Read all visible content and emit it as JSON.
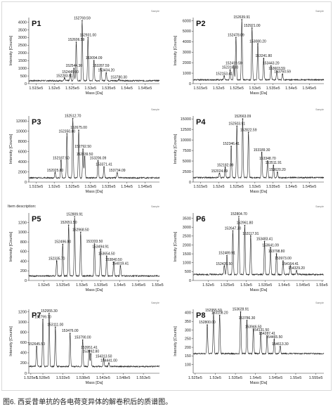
{
  "caption": "图6. 西妥昔单抗的各电荷变异体的解卷积后的质谱图。",
  "chart_data": [
    {
      "type": "line",
      "title": "P1",
      "xlabel": "Mass [Da]",
      "ylabel": "Intensity [Counts]",
      "corner_label": "Sample",
      "description": "",
      "xlim": [
        151300,
        154900
      ],
      "ylim": [
        0,
        4300
      ],
      "xticks": [
        151500,
        152000,
        152500,
        153000,
        153500,
        154000,
        154500
      ],
      "xtick_labels": [
        "1.515e5",
        "1.52e5",
        "1.525e5",
        "1.53e5",
        "1.535e5",
        "1.54e5",
        "1.545e5"
      ],
      "yticks": [
        0,
        500,
        1000,
        1500,
        2000,
        2500,
        3000,
        3500,
        4000
      ],
      "ytick_labels": [
        "0",
        "500",
        "1000",
        "1500",
        "2000",
        "2500",
        "3000",
        "3500",
        "4000"
      ],
      "baseline": 150,
      "peaks": [
        {
          "x": 152283.91,
          "y": 350,
          "label": "152283.91"
        },
        {
          "x": 152445.0,
          "y": 600,
          "label": "152445.00"
        },
        {
          "x": 152544.3,
          "y": 1000,
          "label": "152544.30"
        },
        {
          "x": 152606.59,
          "y": 2700,
          "label": "152606.59"
        },
        {
          "x": 152769.59,
          "y": 4100,
          "label": "152769.59"
        },
        {
          "x": 152931.0,
          "y": 3000,
          "label": "152931.00"
        },
        {
          "x": 153094.09,
          "y": 1500,
          "label": "153094.09"
        },
        {
          "x": 153287.59,
          "y": 1000,
          "label": "153287.59"
        },
        {
          "x": 153434.2,
          "y": 700,
          "label": "153434.20"
        },
        {
          "x": 153780.3,
          "y": 250,
          "label": "153780.30"
        }
      ]
    },
    {
      "type": "line",
      "title": "P2",
      "xlabel": "Mass [Da]",
      "ylabel": "Intensity [Counts]",
      "corner_label": "Sample",
      "description": "",
      "xlim": [
        151300,
        154900
      ],
      "ylim": [
        0,
        6300
      ],
      "xticks": [
        151500,
        152000,
        152500,
        153000,
        153500,
        154000,
        154500
      ],
      "xtick_labels": [
        "1.515e5",
        "1.52e5",
        "1.525e5",
        "1.53e5",
        "1.535e5",
        "1.54e5",
        "1.545e5"
      ],
      "yticks": [
        0,
        1000,
        2000,
        3000,
        4000,
        5000,
        6000
      ],
      "ytick_labels": [
        "0",
        "1000",
        "2000",
        "3000",
        "4000",
        "5000",
        "6000"
      ],
      "baseline": 300,
      "peaks": [
        {
          "x": 152153.41,
          "y": 700,
          "label": "152153.41"
        },
        {
          "x": 152316.3,
          "y": 1300,
          "label": "152316.30"
        },
        {
          "x": 152419.59,
          "y": 1700,
          "label": "152419.59"
        },
        {
          "x": 152478.09,
          "y": 4400,
          "label": "152478.09"
        },
        {
          "x": 152639.91,
          "y": 6100,
          "label": "152639.91"
        },
        {
          "x": 152921.0,
          "y": 5300,
          "label": "152921.00"
        },
        {
          "x": 153080.2,
          "y": 3800,
          "label": "153080.20"
        },
        {
          "x": 153241.8,
          "y": 2400,
          "label": "153241.80"
        },
        {
          "x": 153443.2,
          "y": 1700,
          "label": "153443.20"
        },
        {
          "x": 153603.59,
          "y": 1200,
          "label": "153603.59"
        },
        {
          "x": 153760.59,
          "y": 900,
          "label": "153760.59"
        }
      ]
    },
    {
      "type": "line",
      "title": "P3",
      "xlabel": "Mass [Da]",
      "ylabel": "Intensity [Counts]",
      "corner_label": "Sample",
      "description": "",
      "xlim": [
        151300,
        154900
      ],
      "ylim": [
        0,
        13000
      ],
      "xticks": [
        151500,
        152000,
        152500,
        153000,
        153500,
        154000,
        154500
      ],
      "xtick_labels": [
        "1.515e5",
        "1.52e5",
        "1.525e5",
        "1.53e5",
        "1.535e5",
        "1.54e5",
        "1.545e5"
      ],
      "yticks": [
        0,
        2000,
        4000,
        6000,
        8000,
        10000,
        12000
      ],
      "ytick_labels": [
        "0",
        "2000",
        "4000",
        "6000",
        "8000",
        "10000",
        "12000"
      ],
      "baseline": 700,
      "peaks": [
        {
          "x": 152025.8,
          "y": 1800,
          "label": "152025.80"
        },
        {
          "x": 152187.5,
          "y": 4200,
          "label": "152187.50"
        },
        {
          "x": 152350.8,
          "y": 9500,
          "label": "152350.80"
        },
        {
          "x": 152512.7,
          "y": 12500,
          "label": "152512.70"
        },
        {
          "x": 152675.0,
          "y": 10200,
          "label": "152675.00"
        },
        {
          "x": 152792.5,
          "y": 6500,
          "label": "152792.50"
        },
        {
          "x": 152839.5,
          "y": 5000,
          "label": "152839.50"
        },
        {
          "x": 153206.09,
          "y": 4200,
          "label": "153206.09"
        },
        {
          "x": 153371.41,
          "y": 3000,
          "label": "153371.41"
        },
        {
          "x": 153734.09,
          "y": 1800,
          "label": "153734.09"
        }
      ]
    },
    {
      "type": "line",
      "title": "P4",
      "xlabel": "Mass [Da]",
      "ylabel": "Intensity [Counts]",
      "corner_label": "Sample",
      "description": "",
      "xlim": [
        151300,
        154900
      ],
      "ylim": [
        0,
        15700
      ],
      "xticks": [
        151500,
        152000,
        152500,
        153000,
        153500,
        154000,
        154500
      ],
      "xtick_labels": [
        "1.515e5",
        "1.52e5",
        "1.525e5",
        "1.53e5",
        "1.535e5",
        "1.54e5",
        "1.545e5"
      ],
      "yticks": [
        0,
        2500,
        5000,
        7500,
        10000,
        12500,
        15000
      ],
      "ytick_labels": [
        "0",
        "2500",
        "5000",
        "7500",
        "10000",
        "12500",
        "15000"
      ],
      "baseline": 900,
      "peaks": [
        {
          "x": 152024.09,
          "y": 2000,
          "label": "152024.09"
        },
        {
          "x": 152182.09,
          "y": 3400,
          "label": "152182.09"
        },
        {
          "x": 152346.41,
          "y": 8500,
          "label": "152346.41"
        },
        {
          "x": 152503.91,
          "y": 13300,
          "label": "152503.91"
        },
        {
          "x": 152663.09,
          "y": 15000,
          "label": "152663.09"
        },
        {
          "x": 152822.59,
          "y": 11800,
          "label": "152822.59"
        },
        {
          "x": 153189.3,
          "y": 7000,
          "label": "153189.30"
        },
        {
          "x": 153348.7,
          "y": 5000,
          "label": "153348.70"
        },
        {
          "x": 153511.91,
          "y": 4000,
          "label": "153511.91"
        },
        {
          "x": 153620.2,
          "y": 2300,
          "label": "153620.20"
        }
      ]
    },
    {
      "type": "line",
      "title": "P5",
      "xlabel": "Mass [Da]",
      "ylabel": "Intensity [Counts]",
      "corner_label": "Sample",
      "description": "Item description:",
      "xlim": [
        151600,
        155050
      ],
      "ylim": [
        0,
        1400
      ],
      "xticks": [
        152000,
        152500,
        153000,
        153500,
        154000,
        154500,
        155000
      ],
      "xtick_labels": [
        "1.52e5",
        "1.525e5",
        "1.53e5",
        "1.535e5",
        "1.54e5",
        "1.545e5",
        "1.55e5"
      ],
      "yticks": [
        0,
        200,
        400,
        600,
        800,
        1000,
        1200
      ],
      "ytick_labels": [
        "0",
        "200",
        "400",
        "600",
        "800",
        "1000",
        "1200"
      ],
      "baseline": 80,
      "peaks": [
        {
          "x": 152335.7,
          "y": 400,
          "label": "152335.70"
        },
        {
          "x": 152496.0,
          "y": 750,
          "label": "152496.00"
        },
        {
          "x": 152651.5,
          "y": 1150,
          "label": "152651.50"
        },
        {
          "x": 152809.91,
          "y": 1320,
          "label": "152809.91"
        },
        {
          "x": 152968.5,
          "y": 1000,
          "label": "152968.50"
        },
        {
          "x": 153333.5,
          "y": 760,
          "label": "153333.50"
        },
        {
          "x": 153494.91,
          "y": 650,
          "label": "153494.91"
        },
        {
          "x": 153654.5,
          "y": 500,
          "label": "153654.50"
        },
        {
          "x": 153840.5,
          "y": 380,
          "label": "153840.50"
        },
        {
          "x": 154019.41,
          "y": 300,
          "label": "154019.41"
        }
      ]
    },
    {
      "type": "line",
      "title": "P6",
      "xlabel": "Mass [Da]",
      "ylabel": "Intensity [Counts]",
      "corner_label": "Sample",
      "description": "",
      "xlim": [
        151600,
        155050
      ],
      "ylim": [
        0,
        3800
      ],
      "xticks": [
        152000,
        152500,
        153000,
        153500,
        154000,
        154500,
        155000
      ],
      "xtick_labels": [
        "1.52e5",
        "1.525e5",
        "1.53e5",
        "1.535e5",
        "1.54e5",
        "1.545e5",
        "1.55e5"
      ],
      "yticks": [
        0,
        500,
        1000,
        1500,
        2000,
        2500,
        3000,
        3500
      ],
      "ytick_labels": [
        "0",
        "500",
        "1000",
        "1500",
        "2000",
        "2500",
        "3000",
        "3500"
      ],
      "baseline": 300,
      "peaks": [
        {
          "x": 152420.5,
          "y": 800,
          "label": "152420.50"
        },
        {
          "x": 152489.91,
          "y": 1400,
          "label": "152489.91"
        },
        {
          "x": 152647.3,
          "y": 2800,
          "label": "152647.30"
        },
        {
          "x": 152804.7,
          "y": 3600,
          "label": "152804.70"
        },
        {
          "x": 152961.8,
          "y": 3100,
          "label": "152961.80"
        },
        {
          "x": 153117.91,
          "y": 2500,
          "label": "153117.91"
        },
        {
          "x": 153483.41,
          "y": 2200,
          "label": "153483.41"
        },
        {
          "x": 153641.09,
          "y": 1850,
          "label": "153641.09"
        },
        {
          "x": 153798.8,
          "y": 1500,
          "label": "153798.80"
        },
        {
          "x": 153973.0,
          "y": 1100,
          "label": "153973.00"
        },
        {
          "x": 154164.41,
          "y": 800,
          "label": "154164.41"
        },
        {
          "x": 154329.2,
          "y": 550,
          "label": "154329.20"
        }
      ]
    },
    {
      "type": "line",
      "title": "P7",
      "xlabel": "Mass [Da]",
      "ylabel": "Intensity [Counts]",
      "corner_label": "Sample",
      "description": "",
      "xlim": [
        152450,
        155700
      ],
      "ylim": [
        0,
        1250
      ],
      "xticks": [
        152500,
        152800,
        153300,
        153800,
        154300,
        154800,
        155300
      ],
      "xtick_labels": [
        "1.525e5",
        "1.528e5",
        "1.533e5",
        "1.538e5",
        "1.543e5",
        "1.548e5",
        "1.553e5"
      ],
      "yticks": [
        0,
        200,
        400,
        600,
        800,
        1000,
        1200
      ],
      "ytick_labels": [
        "0",
        "200",
        "400",
        "600",
        "800",
        "1000",
        "1200"
      ],
      "baseline": 120,
      "peaks": [
        {
          "x": 152645.5,
          "y": 520,
          "label": "152645.50"
        },
        {
          "x": 152799.7,
          "y": 1050,
          "label": "152799.70"
        },
        {
          "x": 152955.3,
          "y": 1170,
          "label": "152955.30"
        },
        {
          "x": 153111.0,
          "y": 900,
          "label": "153111.00"
        },
        {
          "x": 153476.0,
          "y": 780,
          "label": "153476.00"
        },
        {
          "x": 153790.0,
          "y": 650,
          "label": "153790.00"
        },
        {
          "x": 153951.41,
          "y": 450,
          "label": "153951.41"
        },
        {
          "x": 153992.8,
          "y": 380,
          "label": "153992.80"
        },
        {
          "x": 154313.5,
          "y": 280,
          "label": "154313.50"
        },
        {
          "x": 154441.0,
          "y": 200,
          "label": "154441.00"
        }
      ]
    },
    {
      "type": "line",
      "title": "P8",
      "xlabel": "Mass [Da]",
      "ylabel": "Intensity [Counts]",
      "corner_label": "Sample",
      "description": "",
      "xlim": [
        152450,
        155700
      ],
      "ylim": [
        50,
        420
      ],
      "xticks": [
        152500,
        153000,
        153500,
        154000,
        154500,
        155000,
        155500
      ],
      "xtick_labels": [
        "1.525e5",
        "1.53e5",
        "1.535e5",
        "1.54e5",
        "1.545e5",
        "1.55e5",
        "1.555e5"
      ],
      "yticks": [
        100,
        150,
        200,
        250,
        300,
        350,
        400
      ],
      "ytick_labels": [
        "100",
        "150",
        "200",
        "250",
        "300",
        "350",
        "400"
      ],
      "baseline": 160,
      "peaks": [
        {
          "x": 152800.0,
          "y": 330,
          "label": "152800.00"
        },
        {
          "x": 152955.59,
          "y": 400,
          "label": "152955.59"
        },
        {
          "x": 153108.2,
          "y": 385,
          "label": "153108.20"
        },
        {
          "x": 153628.91,
          "y": 405,
          "label": "153628.91"
        },
        {
          "x": 153786.3,
          "y": 355,
          "label": "153786.30"
        },
        {
          "x": 153946.5,
          "y": 305,
          "label": "153946.50"
        },
        {
          "x": 154131.5,
          "y": 285,
          "label": "154131.50"
        },
        {
          "x": 154287.41,
          "y": 265,
          "label": "154287.41"
        },
        {
          "x": 154465.5,
          "y": 245,
          "label": "154465.50"
        },
        {
          "x": 154613.3,
          "y": 205,
          "label": "154613.30"
        }
      ]
    }
  ]
}
